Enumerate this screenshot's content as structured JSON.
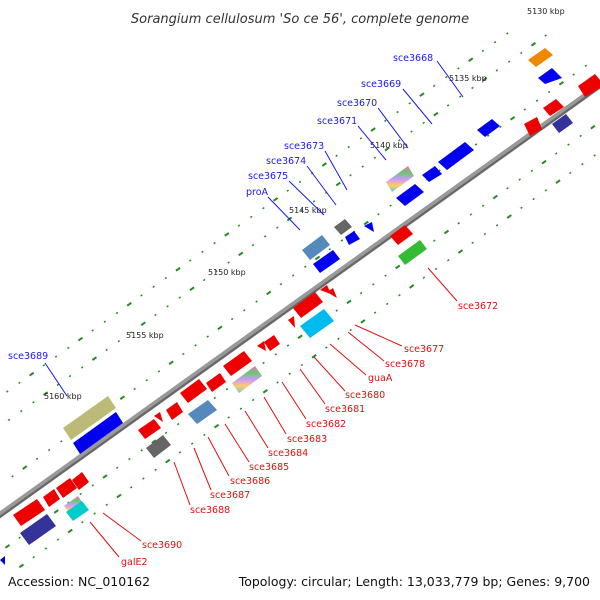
{
  "title": "Sorangium cellulosum 'So ce 56', complete genome",
  "footer": {
    "accession": "Accession: NC_010162",
    "summary": "Topology: circular; Length: 13,033,779 bp; Genes: 9,700"
  },
  "ticks": [
    "5130 kbp",
    "5135 kbp",
    "5140 kbp",
    "5145 kbp",
    "5150 kbp",
    "5155 kbp",
    "5160 kbp"
  ],
  "forward_labels": [
    "sce3668",
    "sce3669",
    "sce3670",
    "sce3671",
    "sce3673",
    "sce3674",
    "sce3675",
    "proA",
    "sce3689"
  ],
  "reverse_labels": [
    "sce3672",
    "sce3677",
    "sce3678",
    "guaA",
    "sce3680",
    "sce3681",
    "sce3682",
    "sce3683",
    "sce3684",
    "sce3685",
    "sce3686",
    "sce3687",
    "sce3688",
    "sce3690",
    "galE2"
  ],
  "colors": {
    "forward": "#0000ee",
    "reverse": "#ee0000",
    "backbone": "#888888",
    "tick": "#228b22"
  }
}
